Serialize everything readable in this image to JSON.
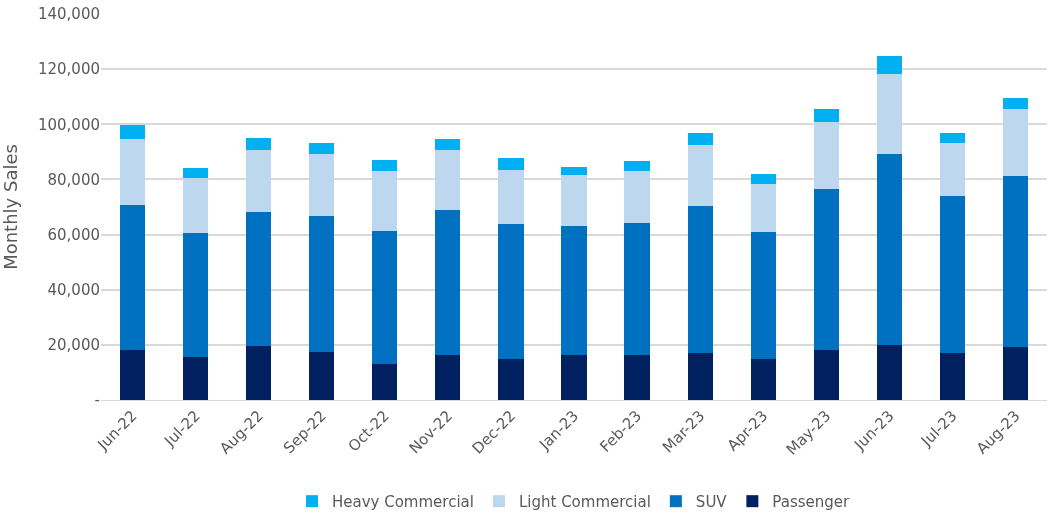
{
  "chart_data": {
    "type": "bar",
    "stacked": true,
    "ylabel": "Monthly Sales",
    "categories": [
      "Jun-22",
      "Jul-22",
      "Aug-22",
      "Sep-22",
      "Oct-22",
      "Nov-22",
      "Dec-22",
      "Jan-23",
      "Feb-23",
      "Mar-23",
      "Apr-23",
      "May-23",
      "Jun-23",
      "Jul-23",
      "Aug-23"
    ],
    "series": [
      {
        "name": "Passenger",
        "color": "#002060",
        "values": [
          18200,
          15700,
          19600,
          17300,
          13100,
          16500,
          14800,
          16500,
          16200,
          16900,
          15000,
          18000,
          20000,
          16900,
          19100
        ]
      },
      {
        "name": "SUV",
        "color": "#0070c0",
        "values": [
          52400,
          44700,
          48600,
          49600,
          48300,
          52300,
          49000,
          46500,
          47900,
          53600,
          45900,
          58700,
          69200,
          57000,
          62300
        ]
      },
      {
        "name": "Light Commercial",
        "color": "#bdd7ee",
        "values": [
          23900,
          20100,
          22600,
          22300,
          21600,
          21700,
          19600,
          18600,
          18800,
          21900,
          17300,
          24000,
          29000,
          19200,
          24100
        ]
      },
      {
        "name": "Heavy Commercial",
        "color": "#00b0f0",
        "values": [
          5200,
          3700,
          4200,
          4000,
          4100,
          4300,
          4200,
          3000,
          3800,
          4600,
          3800,
          4800,
          6400,
          3600,
          4200
        ]
      }
    ],
    "ylim": [
      0,
      140000
    ],
    "yticks": [
      {
        "value": 0,
        "label": "-"
      },
      {
        "value": 20000,
        "label": "20,000"
      },
      {
        "value": 40000,
        "label": "40,000"
      },
      {
        "value": 60000,
        "label": "60,000"
      },
      {
        "value": 80000,
        "label": "80,000"
      },
      {
        "value": 100000,
        "label": "100,000"
      },
      {
        "value": 120000,
        "label": "120,000"
      },
      {
        "value": 140000,
        "label": "140,000"
      }
    ],
    "grid": "y",
    "legend": "bottom"
  }
}
